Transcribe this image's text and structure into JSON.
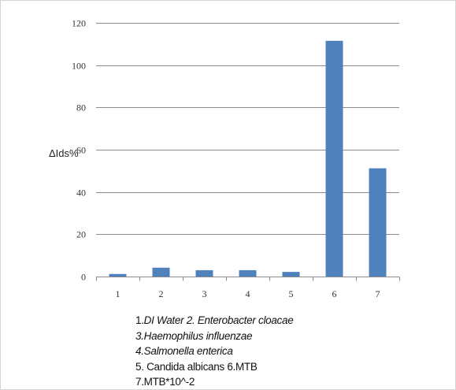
{
  "chart_data": {
    "type": "bar",
    "categories": [
      "1",
      "2",
      "3",
      "4",
      "5",
      "6",
      "7"
    ],
    "values": [
      1.2,
      4.2,
      3.0,
      3.0,
      2.2,
      111.5,
      51.2
    ],
    "ylabel": "ΔIds%",
    "ylim": [
      0,
      120
    ],
    "yticks": [
      "0",
      "20",
      "40",
      "60",
      "80",
      "100",
      "120"
    ],
    "grid": true,
    "bar_color": "#4f81bd",
    "grid_color": "#8c8c8c"
  },
  "legend_lines": [
    [
      {
        "text": "1.",
        "italic": false
      },
      {
        "text": "DI Water 2. Enterobacter cloacae",
        "italic": true
      }
    ],
    [
      {
        "text": "3.Haemophilus influenzae",
        "italic": true
      }
    ],
    [
      {
        "text": "4.Salmonella enterica",
        "italic": true
      }
    ],
    [
      {
        "text": "5. Candida albicans  6.MTB",
        "italic": false
      }
    ],
    [
      {
        "text": "7.MTB*10^-2",
        "italic": false
      }
    ]
  ]
}
